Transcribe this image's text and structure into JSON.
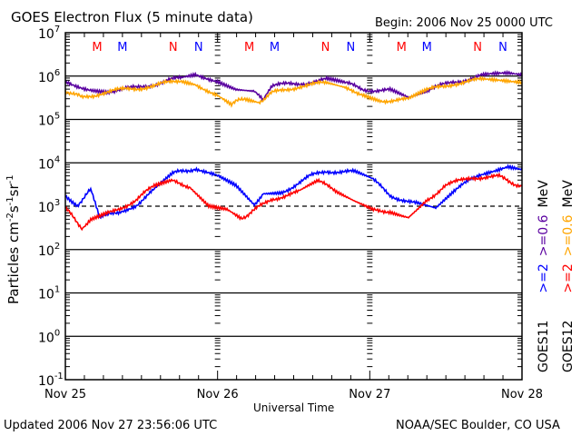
{
  "chart_data": {
    "type": "line",
    "title": "GOES Electron Flux (5 minute data)",
    "begin_label": "Begin: 2006 Nov 25 0000 UTC",
    "xlabel": "Universal Time",
    "ylabel": "Particles cm-2s-1sr-1",
    "ylabel_parts": {
      "base": "Particles cm",
      "e1": "-2",
      "s": "s",
      "e2": "-1",
      "sr": "sr",
      "e3": "-1"
    },
    "x_unit": "hours since 2006 Nov 25 00:00 UTC",
    "xlim": [
      0,
      72
    ],
    "x_ticks": [
      {
        "hour": 0,
        "label": "Nov 25"
      },
      {
        "hour": 24,
        "label": "Nov 26"
      },
      {
        "hour": 48,
        "label": "Nov 27"
      },
      {
        "hour": 72,
        "label": "Nov 28"
      }
    ],
    "yscale": "log",
    "ylim_exp": [
      -1,
      7
    ],
    "y_ticks": [
      7,
      6,
      5,
      4,
      3,
      2,
      1,
      0,
      -1
    ],
    "solid_lines_exp": [
      6,
      5,
      4,
      2,
      1,
      0
    ],
    "dashed_line_exp": 3,
    "markers": [
      {
        "label": "M",
        "hour": 5.0,
        "color": "#ff0000"
      },
      {
        "label": "M",
        "hour": 9.0,
        "color": "#0000ff"
      },
      {
        "label": "N",
        "hour": 17.0,
        "color": "#ff0000"
      },
      {
        "label": "N",
        "hour": 21.0,
        "color": "#0000ff"
      },
      {
        "label": "M",
        "hour": 29.0,
        "color": "#ff0000"
      },
      {
        "label": "M",
        "hour": 33.0,
        "color": "#0000ff"
      },
      {
        "label": "N",
        "hour": 41.0,
        "color": "#ff0000"
      },
      {
        "label": "N",
        "hour": 45.0,
        "color": "#0000ff"
      },
      {
        "label": "M",
        "hour": 53.0,
        "color": "#ff0000"
      },
      {
        "label": "M",
        "hour": 57.0,
        "color": "#0000ff"
      },
      {
        "label": "N",
        "hour": 65.0,
        "color": "#ff0000"
      },
      {
        "label": "N",
        "hour": 69.0,
        "color": "#0000ff"
      }
    ],
    "series": [
      {
        "name": "GOES11 >=0.6 MeV",
        "color": "#5a00a0",
        "x": [
          0,
          4,
          6.9,
          11.2,
          15.5,
          18.3,
          20.5,
          24,
          26.9,
          29.8,
          31.2,
          32.6,
          36.9,
          41.2,
          44.1,
          46.9,
          51.2,
          54.1,
          57,
          61.3,
          65.6,
          69.8,
          72
        ],
        "values": [
          740000.0,
          500000.0,
          460000.0,
          530000.0,
          740000.0,
          900000.0,
          1050000.0,
          810000.0,
          530000.0,
          460000.0,
          260000.0,
          590000.0,
          680000.0,
          810000.0,
          680000.0,
          500000.0,
          460000.0,
          310000.0,
          460000.0,
          740000.0,
          1000000.0,
          1100000.0,
          1000000.0
        ]
      },
      {
        "name": "GOES12 >=0.6 MeV",
        "color": "#ffa500",
        "x": [
          0,
          2.6,
          5.4,
          9.7,
          14,
          18.3,
          20.5,
          24,
          26.2,
          28.3,
          30.5,
          32.6,
          36.9,
          41.2,
          44.1,
          46.9,
          49.8,
          54.1,
          57,
          61.3,
          65.6,
          72
        ],
        "values": [
          480000.0,
          310000.0,
          400000.0,
          500000.0,
          590000.0,
          810000.0,
          680000.0,
          360000.0,
          220000.0,
          310000.0,
          260000.0,
          400000.0,
          590000.0,
          680000.0,
          500000.0,
          400000.0,
          280000.0,
          280000.0,
          460000.0,
          680000.0,
          810000.0,
          740000.0
        ]
      },
      {
        "name": "GOES11 >=2 MeV",
        "color": "#0000ff",
        "x": [
          0,
          1.9,
          4,
          5.4,
          8.2,
          11.2,
          14,
          16.9,
          20.5,
          24,
          26.9,
          29.8,
          31.2,
          34.1,
          38.4,
          41.2,
          45.5,
          48.4,
          51.2,
          55.5,
          58.4,
          61.3,
          65.6,
          69.8,
          72
        ],
        "values": [
          1800,
          1100,
          2300,
          540,
          690,
          1100,
          2300,
          5500,
          7600,
          4700,
          2900,
          1100,
          2100,
          2100,
          4700,
          6600,
          6000,
          4100,
          1800,
          1100,
          870,
          2300,
          5500,
          8900,
          7600
        ]
      },
      {
        "name": "GOES12 >=2 MeV",
        "color": "#ff0000",
        "x": [
          0,
          2.6,
          4,
          6.9,
          11.2,
          14,
          16.9,
          19.7,
          22.6,
          25.5,
          27.7,
          29.8,
          32.6,
          36.9,
          39.8,
          42.6,
          45.5,
          48.4,
          51.2,
          54.1,
          57,
          59.8,
          64.1,
          68.4,
          72
        ],
        "values": [
          870,
          330,
          490,
          690,
          1400,
          2900,
          3700,
          2900,
          1100,
          870,
          540,
          790,
          1500,
          2100,
          3700,
          2300,
          1300,
          790,
          790,
          590,
          1400,
          2900,
          4700,
          4700,
          2900
        ]
      }
    ],
    "legend": {
      "placement": "right",
      "sat1": "GOES11",
      "sat2": "GOES12",
      "e2_1": ">=2",
      "e06_1": ">=0.6",
      "e2_2": ">=2",
      "e06_2": ">=0.6",
      "unit": "MeV"
    }
  },
  "footer": {
    "updated": "Updated 2006 Nov 27 23:56:06 UTC",
    "credit": "NOAA/SEC Boulder, CO USA"
  }
}
